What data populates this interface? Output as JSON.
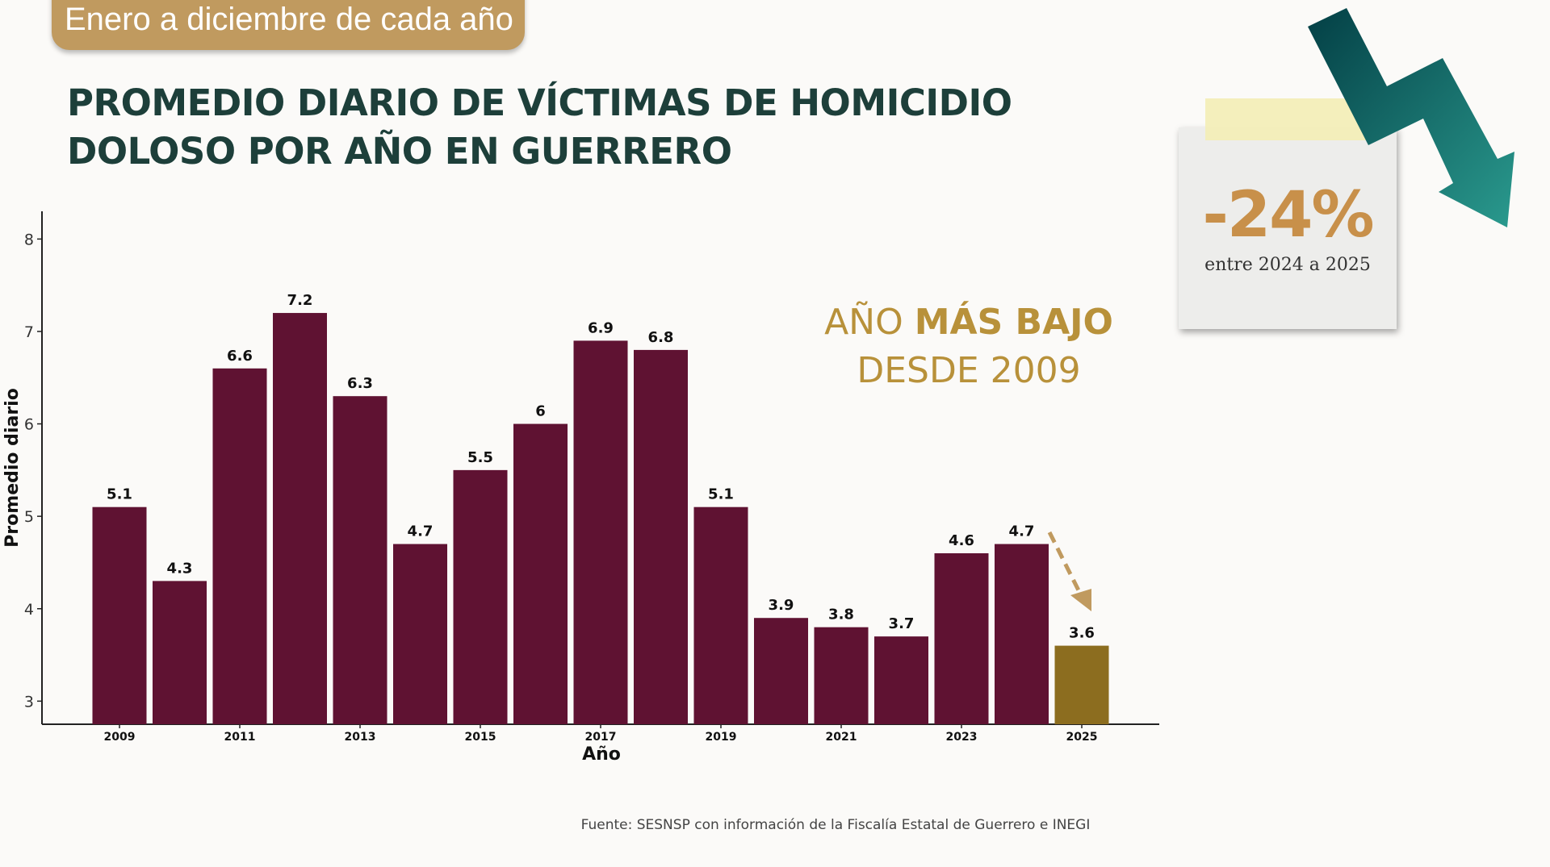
{
  "header": {
    "tag": "Enero a diciembre de cada año",
    "title_lines": [
      "PROMEDIO DIARIO DE VÍCTIMAS DE HOMICIDIO",
      "DOLOSO POR AÑO EN GUERRERO"
    ]
  },
  "highlight": {
    "line1_prefix": "AÑO ",
    "line1_bold": "MÁS BAJO",
    "line2": "DESDE 2009"
  },
  "callout": {
    "value": "-24%",
    "caption": "entre 2024 a 2025",
    "trend_icon": "down-zigzag-arrow-icon"
  },
  "source": "Fuente: SESNSP con información de la Fiscalía Estatal de Guerrero e INEGI",
  "colors": {
    "bar": "#5f1232",
    "highlight_bar": "#8c6d1f",
    "title": "#1d3f3a",
    "accent": "#b8913a"
  },
  "chart_data": {
    "type": "bar",
    "xlabel": "Año",
    "ylabel": "Promedio diario",
    "categories": [
      "2009",
      "2010",
      "2011",
      "2012",
      "2013",
      "2014",
      "2015",
      "2016",
      "2017",
      "2018",
      "2019",
      "2020",
      "2021",
      "2022",
      "2023",
      "2024",
      "2025"
    ],
    "values": [
      5.1,
      4.3,
      6.6,
      7.2,
      6.3,
      4.7,
      5.5,
      6,
      6.9,
      6.8,
      5.1,
      3.9,
      3.8,
      3.7,
      4.6,
      4.7,
      3.6
    ],
    "data_labels": [
      "5.1",
      "4.3",
      "6.6",
      "7.2",
      "6.3",
      "4.7",
      "5.5",
      "6",
      "6.9",
      "6.8",
      "5.1",
      "3.9",
      "3.8",
      "3.7",
      "4.6",
      "4.7",
      "3.6"
    ],
    "x_tick_labels": [
      "2009",
      "2011",
      "2013",
      "2015",
      "2017",
      "2019",
      "2021",
      "2023",
      "2025"
    ],
    "y_ticks": [
      3,
      4,
      5,
      6,
      7,
      8
    ],
    "ylim": [
      2.75,
      8.3
    ],
    "highlighted_category": "2025",
    "grid": false
  }
}
